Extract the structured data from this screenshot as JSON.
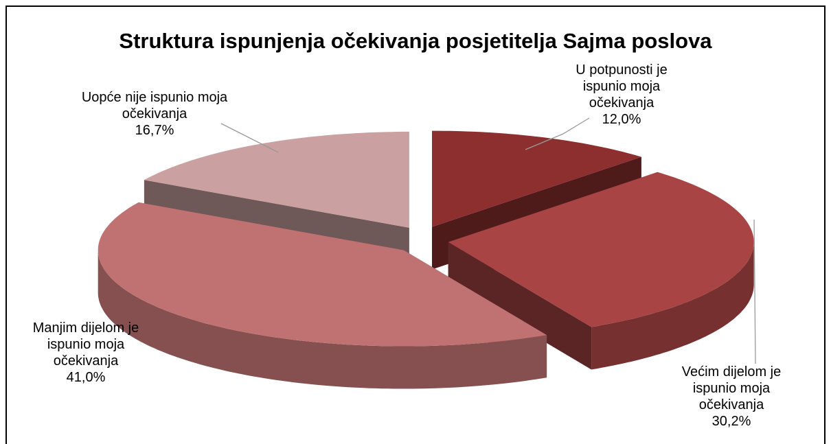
{
  "chart_data": {
    "type": "pie",
    "title": "Struktura ispunjenja očekivanja posjetitelja Sajma poslova",
    "categories": [
      "U potpunosti je ispunio moja očekivanja",
      "Većim dijelom je ispunio moja očekivanja",
      "Manjim dijelom je ispunio moja očekivanja",
      "Uopće nije ispunio moja očekivanja"
    ],
    "values": [
      12.0,
      30.2,
      41.0,
      16.7
    ],
    "value_labels": [
      "12,0%",
      "30,2%",
      "41,0%",
      "16,7%"
    ],
    "colors": [
      "#8e2f2f",
      "#a84444",
      "#c07272",
      "#caa0a0"
    ]
  }
}
